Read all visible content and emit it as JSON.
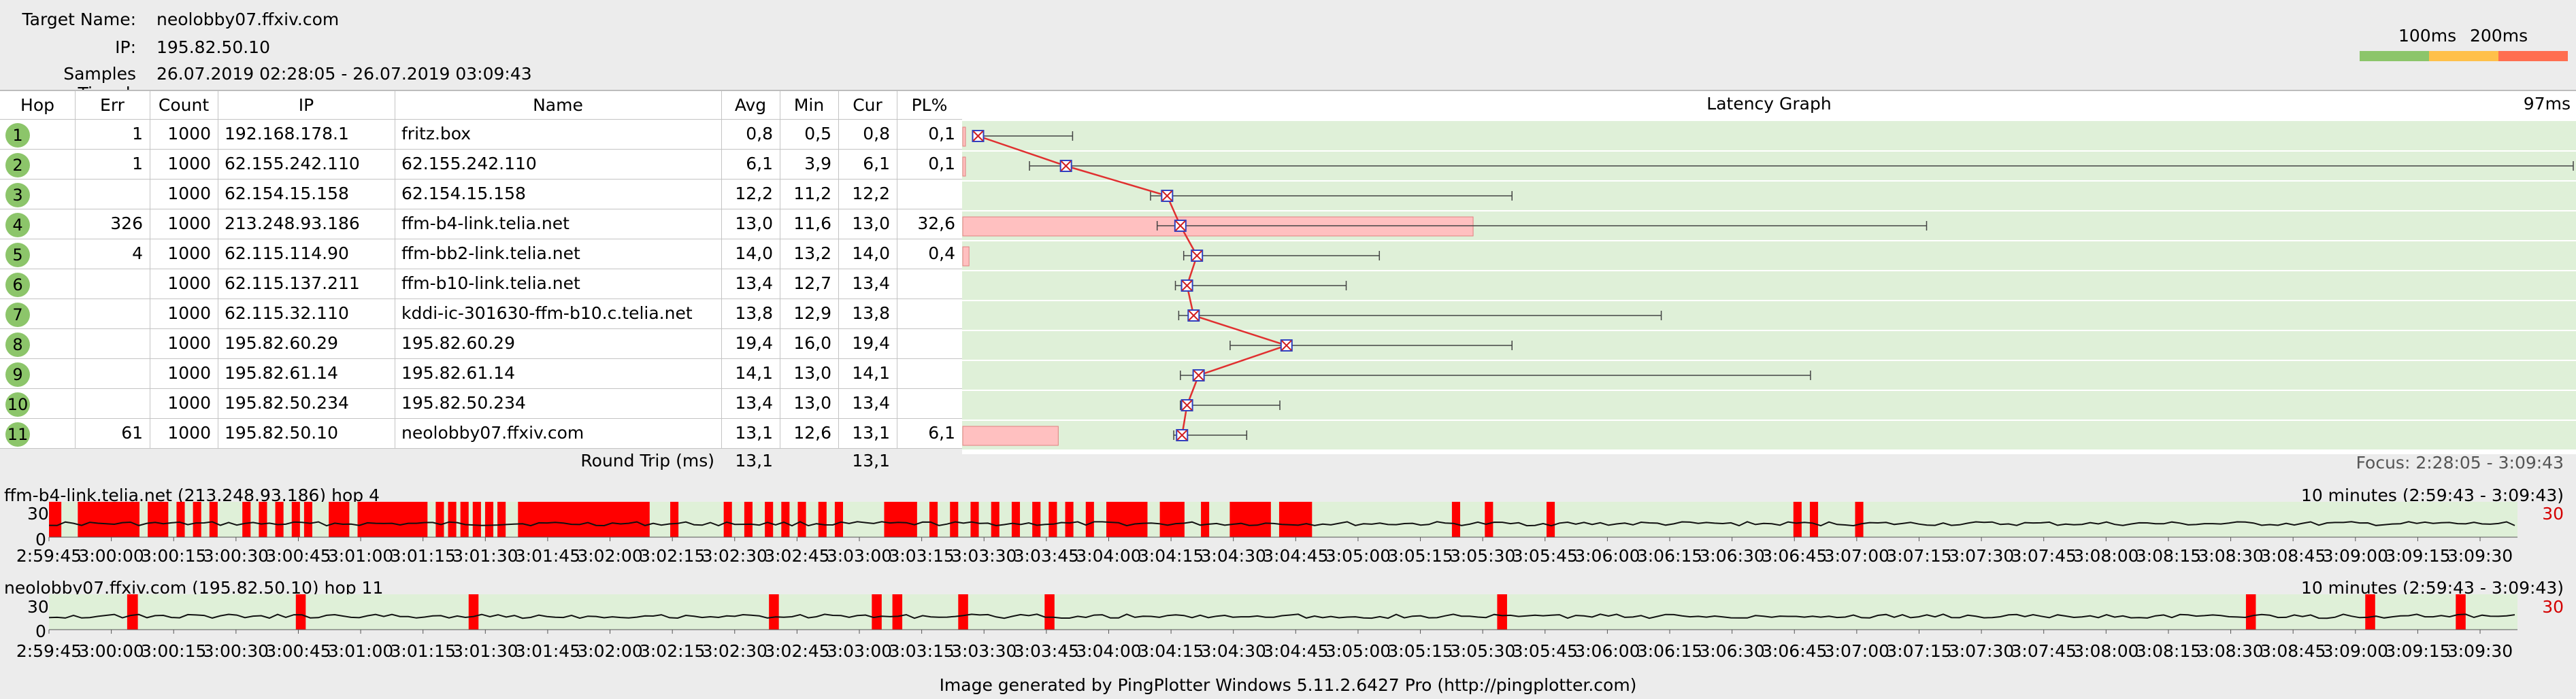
{
  "header": {
    "target_label": "Target Name:",
    "target_value": "neolobby07.ffxiv.com",
    "ip_label": "IP:",
    "ip_value": "195.82.50.10",
    "samples_label": "Samples Timed:",
    "samples_value": "26.07.2019 02:28:05 - 26.07.2019 03:09:43"
  },
  "scale": {
    "label_100": "100ms",
    "label_200": "200ms",
    "colors": [
      "#8cc56a",
      "#ffc04a",
      "#ff6e50"
    ]
  },
  "table": {
    "columns": [
      "Hop",
      "Err",
      "Count",
      "IP",
      "Name",
      "Avg",
      "Min",
      "Cur",
      "PL%"
    ],
    "rows": [
      {
        "hop": "1",
        "err": "1",
        "count": "1000",
        "ip": "192.168.178.1",
        "name": "fritz.box",
        "avg": "0,8",
        "min": "0,5",
        "cur": "0,8",
        "pl": "0,1"
      },
      {
        "hop": "2",
        "err": "1",
        "count": "1000",
        "ip": "62.155.242.110",
        "name": "62.155.242.110",
        "avg": "6,1",
        "min": "3,9",
        "cur": "6,1",
        "pl": "0,1"
      },
      {
        "hop": "3",
        "err": "",
        "count": "1000",
        "ip": "62.154.15.158",
        "name": "62.154.15.158",
        "avg": "12,2",
        "min": "11,2",
        "cur": "12,2",
        "pl": ""
      },
      {
        "hop": "4",
        "err": "326",
        "count": "1000",
        "ip": "213.248.93.186",
        "name": "ffm-b4-link.telia.net",
        "avg": "13,0",
        "min": "11,6",
        "cur": "13,0",
        "pl": "32,6"
      },
      {
        "hop": "5",
        "err": "4",
        "count": "1000",
        "ip": "62.115.114.90",
        "name": "ffm-bb2-link.telia.net",
        "avg": "14,0",
        "min": "13,2",
        "cur": "14,0",
        "pl": "0,4"
      },
      {
        "hop": "6",
        "err": "",
        "count": "1000",
        "ip": "62.115.137.211",
        "name": "ffm-b10-link.telia.net",
        "avg": "13,4",
        "min": "12,7",
        "cur": "13,4",
        "pl": ""
      },
      {
        "hop": "7",
        "err": "",
        "count": "1000",
        "ip": "62.115.32.110",
        "name": "kddi-ic-301630-ffm-b10.c.telia.net",
        "avg": "13,8",
        "min": "12,9",
        "cur": "13,8",
        "pl": ""
      },
      {
        "hop": "8",
        "err": "",
        "count": "1000",
        "ip": "195.82.60.29",
        "name": "195.82.60.29",
        "avg": "19,4",
        "min": "16,0",
        "cur": "19,4",
        "pl": ""
      },
      {
        "hop": "9",
        "err": "",
        "count": "1000",
        "ip": "195.82.61.14",
        "name": "195.82.61.14",
        "avg": "14,1",
        "min": "13,0",
        "cur": "14,1",
        "pl": ""
      },
      {
        "hop": "10",
        "err": "",
        "count": "1000",
        "ip": "195.82.50.234",
        "name": "195.82.50.234",
        "avg": "13,4",
        "min": "13,0",
        "cur": "13,4",
        "pl": ""
      },
      {
        "hop": "11",
        "err": "61",
        "count": "1000",
        "ip": "195.82.50.10",
        "name": "neolobby07.ffxiv.com",
        "avg": "13,1",
        "min": "12,6",
        "cur": "13,1",
        "pl": "6,1"
      }
    ],
    "round_trip_label": "Round Trip (ms)",
    "round_trip_avg": "13,1",
    "round_trip_cur": "13,1"
  },
  "latency_graph": {
    "title": "Latency Graph",
    "max_label": "97ms",
    "focus": "Focus: 2:28:05 - 3:09:43",
    "background": "#dff0d8",
    "loss_color": "#ffc0c0",
    "line_color": "#e03030"
  },
  "chart_data": [
    {
      "type": "bar",
      "title": "Latency Graph",
      "xlabel": "",
      "ylabel": "",
      "categories": [
        "1",
        "2",
        "3",
        "4",
        "5",
        "6",
        "7",
        "8",
        "9",
        "10",
        "11"
      ],
      "xlim": [
        0,
        97
      ],
      "series": [
        {
          "name": "Avg",
          "values": [
            0.8,
            6.1,
            12.2,
            13.0,
            14.0,
            13.4,
            13.8,
            19.4,
            14.1,
            13.4,
            13.1
          ]
        },
        {
          "name": "Min",
          "values": [
            0.5,
            3.9,
            11.2,
            11.6,
            13.2,
            12.7,
            12.9,
            16.0,
            13.0,
            13.0,
            12.6
          ]
        },
        {
          "name": "Max",
          "values": [
            6.5,
            97,
            33,
            58,
            25,
            23,
            42,
            33,
            51,
            19,
            17
          ]
        },
        {
          "name": "PL%",
          "values": [
            0.1,
            0.1,
            0,
            32.6,
            0.4,
            0,
            0,
            0,
            0,
            0,
            6.1
          ]
        }
      ]
    },
    {
      "type": "bar",
      "title": "ffm-b4-link.telia.net (213.248.93.186) hop 4",
      "xlabel": "",
      "ylabel": "",
      "ylim": [
        0,
        30
      ],
      "note_range": "10 minutes (2:59:43 - 3:09:43)",
      "loss_intervals_minutes": [
        [
          0,
          0.15
        ],
        [
          0.35,
          1.1
        ],
        [
          1.2,
          1.45
        ],
        [
          1.55,
          1.65
        ],
        [
          1.75,
          1.85
        ],
        [
          1.95,
          2.05
        ],
        [
          2.35,
          2.45
        ],
        [
          2.55,
          2.65
        ],
        [
          2.75,
          2.85
        ],
        [
          2.95,
          3.05
        ],
        [
          3.1,
          3.2
        ],
        [
          3.4,
          3.65
        ],
        [
          3.75,
          4.6
        ],
        [
          4.7,
          4.8
        ],
        [
          4.85,
          4.95
        ],
        [
          5.0,
          5.1
        ],
        [
          5.15,
          5.25
        ],
        [
          5.3,
          5.4
        ],
        [
          5.45,
          5.55
        ],
        [
          5.7,
          7.3
        ],
        [
          7.55,
          7.65
        ],
        [
          8.2,
          8.3
        ],
        [
          8.45,
          8.55
        ],
        [
          8.7,
          8.8
        ],
        [
          8.9,
          9.0
        ],
        [
          9.1,
          9.2
        ],
        [
          9.35,
          9.45
        ],
        [
          9.55,
          9.65
        ],
        [
          10.15,
          10.55
        ],
        [
          10.7,
          10.8
        ],
        [
          10.95,
          11.05
        ],
        [
          11.2,
          11.3
        ],
        [
          11.45,
          11.55
        ],
        [
          11.7,
          11.8
        ],
        [
          11.95,
          12.05
        ],
        [
          12.15,
          12.25
        ],
        [
          12.35,
          12.45
        ],
        [
          12.6,
          12.7
        ],
        [
          12.85,
          13.35
        ],
        [
          13.5,
          13.8
        ],
        [
          14.0,
          14.1
        ],
        [
          14.35,
          14.85
        ],
        [
          14.95,
          15.35
        ],
        [
          17.05,
          17.15
        ],
        [
          17.45,
          17.55
        ],
        [
          18.2,
          18.3
        ],
        [
          21.2,
          21.3
        ],
        [
          21.4,
          21.5
        ],
        [
          21.95,
          22.05
        ]
      ]
    },
    {
      "type": "bar",
      "title": "neolobby07.ffxiv.com (195.82.50.10) hop 11",
      "xlabel": "",
      "ylabel": "",
      "ylim": [
        0,
        30
      ],
      "note_range": "10 minutes (2:59:43 - 3:09:43)",
      "loss_intervals_minutes": [
        [
          0.95,
          1.08
        ],
        [
          3.0,
          3.12
        ],
        [
          5.1,
          5.22
        ],
        [
          8.75,
          8.87
        ],
        [
          10.0,
          10.12
        ],
        [
          10.25,
          10.37
        ],
        [
          11.05,
          11.17
        ],
        [
          12.1,
          12.22
        ],
        [
          17.6,
          17.72
        ],
        [
          26.7,
          26.82
        ],
        [
          28.15,
          28.27
        ],
        [
          29.25,
          29.37
        ]
      ]
    }
  ],
  "histograms": [
    {
      "title": "ffm-b4-link.telia.net (213.248.93.186) hop 4",
      "range": "10 minutes (2:59:43 - 3:09:43)",
      "y_top": "30",
      "y_zero": "0",
      "right_label": "30"
    },
    {
      "title": "neolobby07.ffxiv.com (195.82.50.10) hop 11",
      "range": "10 minutes (2:59:43 - 3:09:43)",
      "y_top": "30",
      "y_zero": "0",
      "right_label": "30"
    }
  ],
  "time_axis": [
    "2:59:45",
    "3:00:00",
    "3:00:15",
    "3:00:30",
    "3:00:45",
    "3:01:00",
    "3:01:15",
    "3:01:30",
    "3:01:45",
    "3:02:00",
    "3:02:15",
    "3:02:30",
    "3:02:45",
    "3:03:00",
    "3:03:15",
    "3:03:30",
    "3:03:45",
    "3:04:00",
    "3:04:15",
    "3:04:30",
    "3:04:45",
    "3:05:00",
    "3:05:15",
    "3:05:30",
    "3:05:45",
    "3:06:00",
    "3:06:15",
    "3:06:30",
    "3:06:45",
    "3:07:00",
    "3:07:15",
    "3:07:30",
    "3:07:45",
    "3:08:00",
    "3:08:15",
    "3:08:30",
    "3:08:45",
    "3:09:00",
    "3:09:15",
    "3:09:30"
  ],
  "footer": "Image generated by PingPlotter Windows 5.11.2.6427 Pro (http://pingplotter.com)"
}
